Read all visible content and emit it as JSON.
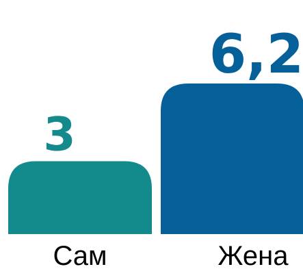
{
  "chart_data": {
    "type": "bar",
    "categories": [
      "Сам",
      "Жена"
    ],
    "values": [
      3,
      6.2
    ],
    "value_labels": [
      "3",
      "6,2"
    ],
    "colors": [
      "#138B8D",
      "#05609A"
    ],
    "label_colors": [
      "#148A8C",
      "#05609A"
    ],
    "title": "",
    "xlabel": "",
    "ylabel": "",
    "ylim": [
      0,
      6.2
    ],
    "grid": false,
    "legend": "none"
  }
}
